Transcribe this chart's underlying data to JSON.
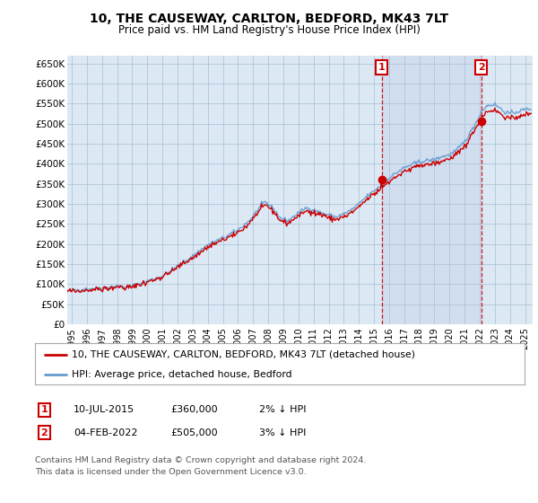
{
  "title": "10, THE CAUSEWAY, CARLTON, BEDFORD, MK43 7LT",
  "subtitle": "Price paid vs. HM Land Registry's House Price Index (HPI)",
  "background_color": "#ffffff",
  "plot_bg_color": "#dce9f5",
  "shade_color": "#c8d8ee",
  "grid_color": "#b0c4d8",
  "hpi_color": "#6699cc",
  "price_color": "#cc0000",
  "ylim": [
    0,
    670000
  ],
  "yticks": [
    0,
    50000,
    100000,
    150000,
    200000,
    250000,
    300000,
    350000,
    400000,
    450000,
    500000,
    550000,
    600000,
    650000
  ],
  "ytick_labels": [
    "£0",
    "£50K",
    "£100K",
    "£150K",
    "£200K",
    "£250K",
    "£300K",
    "£350K",
    "£400K",
    "£450K",
    "£500K",
    "£550K",
    "£600K",
    "£650K"
  ],
  "xlim_start": 1994.7,
  "xlim_end": 2025.5,
  "xticks": [
    1995,
    1996,
    1997,
    1998,
    1999,
    2000,
    2001,
    2002,
    2003,
    2004,
    2005,
    2006,
    2007,
    2008,
    2009,
    2010,
    2011,
    2012,
    2013,
    2014,
    2015,
    2016,
    2017,
    2018,
    2019,
    2020,
    2021,
    2022,
    2023,
    2024,
    2025
  ],
  "sale1_x": 2015.52,
  "sale1_y": 360000,
  "sale1_label": "1",
  "sale2_x": 2022.09,
  "sale2_y": 505000,
  "sale2_label": "2",
  "legend_entry1": "10, THE CAUSEWAY, CARLTON, BEDFORD, MK43 7LT (detached house)",
  "legend_entry2": "HPI: Average price, detached house, Bedford",
  "note1_num": "1",
  "note1_date": "10-JUL-2015",
  "note1_price": "£360,000",
  "note1_hpi": "2% ↓ HPI",
  "note2_num": "2",
  "note2_date": "04-FEB-2022",
  "note2_price": "£505,000",
  "note2_hpi": "3% ↓ HPI",
  "footer": "Contains HM Land Registry data © Crown copyright and database right 2024.\nThis data is licensed under the Open Government Licence v3.0."
}
